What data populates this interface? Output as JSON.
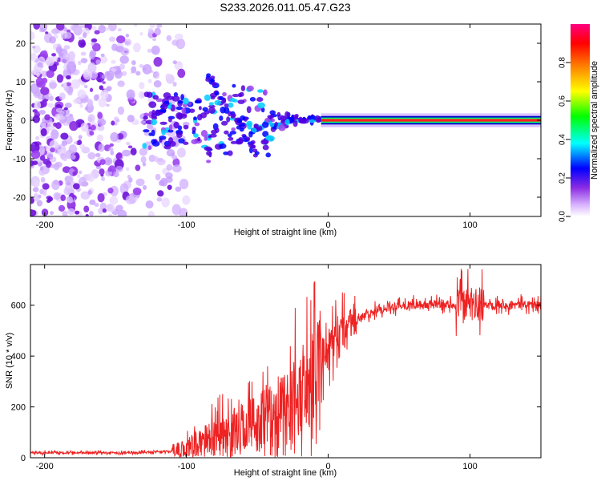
{
  "title": "S233.2026.011.05.47.G23",
  "chart_data": [
    {
      "type": "heatmap",
      "title": "S233.2026.011.05.47.G23",
      "xlabel": "Height of straight line (km)",
      "ylabel": "Frequency (Hz)",
      "xlim": [
        -210,
        150
      ],
      "ylim": [
        -25,
        25
      ],
      "xticks": [
        -200,
        -100,
        0,
        100
      ],
      "yticks": [
        -20,
        -10,
        0,
        10,
        20
      ],
      "signal_frequency_hz": 0,
      "colorbar": {
        "label": "Normalized spectral amplitude",
        "range": [
          0.0,
          1.0
        ],
        "ticks": [
          "0.0",
          "0.2",
          "0.4",
          "0.6",
          "0.8"
        ],
        "colors": [
          "#ffffff",
          "#d9b3ff",
          "#8a2be2",
          "#0000ff",
          "#00ffff",
          "#00ff00",
          "#ffff00",
          "#ff8000",
          "#ff0000",
          "#ff0080"
        ]
      }
    },
    {
      "type": "line",
      "xlabel": "Height of straight line (km)",
      "ylabel": "SNR (10 * v/v)",
      "xlim": [
        -210,
        150
      ],
      "ylim": [
        0,
        760
      ],
      "xticks": [
        -200,
        -100,
        0,
        100
      ],
      "yticks": [
        0,
        200,
        400,
        600
      ],
      "color": "#ee2222",
      "x": [
        -210,
        -140,
        -110,
        -100,
        -90,
        -80,
        -70,
        -60,
        -50,
        -40,
        -30,
        -20,
        -10,
        0,
        10,
        20,
        30,
        40,
        50,
        60,
        70,
        80,
        90,
        100,
        110,
        120,
        130,
        140,
        150
      ],
      "values": [
        20,
        20,
        25,
        35,
        60,
        80,
        100,
        115,
        140,
        160,
        200,
        250,
        330,
        420,
        490,
        540,
        570,
        590,
        600,
        600,
        600,
        605,
        600,
        605,
        600,
        605,
        600,
        605,
        600
      ]
    }
  ]
}
